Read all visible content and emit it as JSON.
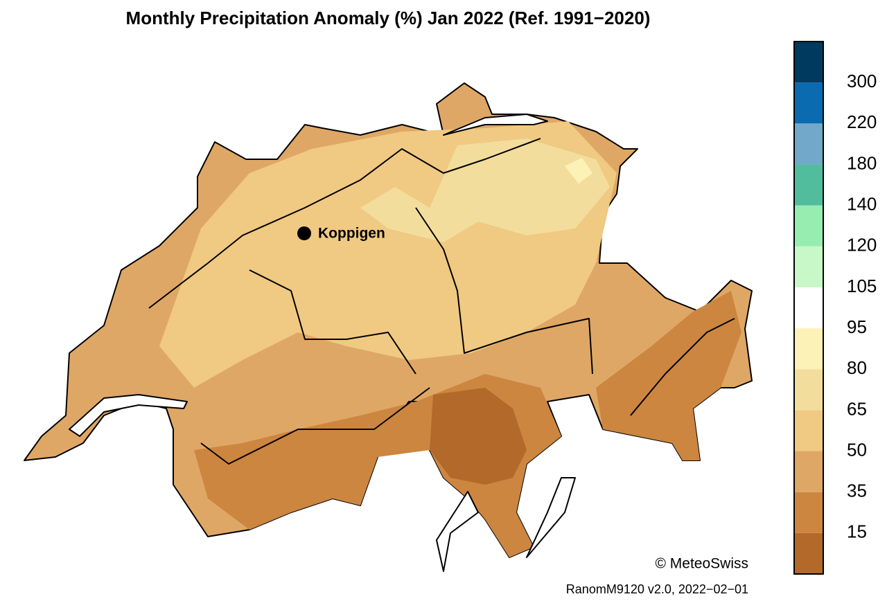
{
  "title": "Monthly Precipitation Anomaly (%) Jan 2022  (Ref. 1991−2020)",
  "place": {
    "name": "Koppigen"
  },
  "legend": {
    "ticks": [
      15,
      35,
      50,
      65,
      80,
      95,
      105,
      120,
      140,
      180,
      220,
      300
    ],
    "colors": [
      "#b3692a",
      "#cc8640",
      "#dfa765",
      "#f0c982",
      "#f3dd9c",
      "#fcf2b8",
      "#ffffff",
      "#c8f7c8",
      "#96edb0",
      "#52bd9d",
      "#72a8c9",
      "#0a6bb0",
      "#003a5e"
    ]
  },
  "credit": "© MeteoSwiss",
  "footer": "RanomM9120 v2.0, 2022−02−01"
}
